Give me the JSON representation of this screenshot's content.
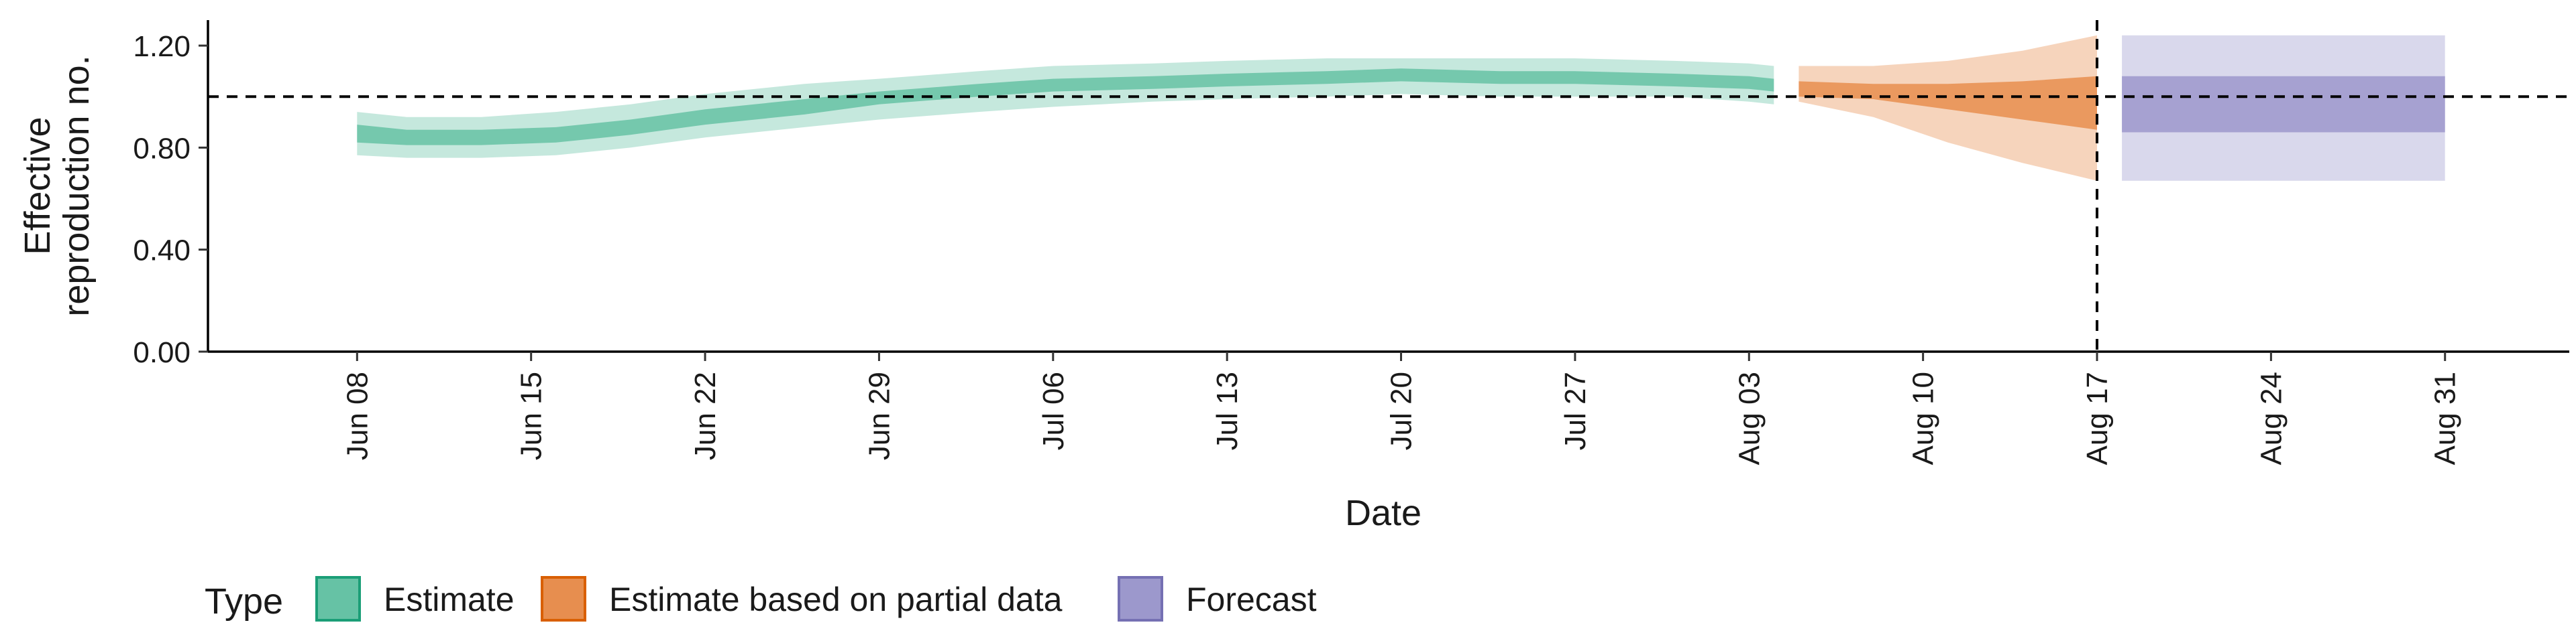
{
  "chart_data": {
    "type": "area",
    "title": "",
    "xlabel": "Date",
    "ylabel_lines": [
      "Effective",
      "reproduction no."
    ],
    "xlim": [
      "2020-06-02",
      "2020-09-05"
    ],
    "ylim": [
      0,
      1.3
    ],
    "y_ticks": [
      0.0,
      0.4,
      0.8,
      1.2
    ],
    "y_tick_labels": [
      "0.00",
      "0.40",
      "0.80",
      "1.20"
    ],
    "x_ticks": [
      "2020-06-08",
      "2020-06-15",
      "2020-06-22",
      "2020-06-29",
      "2020-07-06",
      "2020-07-13",
      "2020-07-20",
      "2020-07-27",
      "2020-08-03",
      "2020-08-10",
      "2020-08-17",
      "2020-08-24",
      "2020-08-31"
    ],
    "x_tick_labels": [
      "Jun 08",
      "Jun 15",
      "Jun 22",
      "Jun 29",
      "Jul 06",
      "Jul 13",
      "Jul 20",
      "Jul 27",
      "Aug 03",
      "Aug 10",
      "Aug 17",
      "Aug 24",
      "Aug 31"
    ],
    "reference_line_y": 1.0,
    "vertical_line_date": "2020-08-17",
    "grid": false,
    "legend_position": "bottom-left",
    "legend_title": "Type",
    "colors": {
      "estimate": "#66c2a5",
      "partial": "#e78e4f",
      "forecast": "#9c98cc",
      "estimate_border": "#1b9e77",
      "partial_border": "#d95f02",
      "forecast_border": "#7570b3"
    },
    "series": [
      {
        "name": "Estimate",
        "color": "#66c2a5",
        "x": [
          "2020-06-08",
          "2020-06-10",
          "2020-06-13",
          "2020-06-16",
          "2020-06-19",
          "2020-06-22",
          "2020-06-26",
          "2020-06-29",
          "2020-07-03",
          "2020-07-06",
          "2020-07-10",
          "2020-07-13",
          "2020-07-17",
          "2020-07-20",
          "2020-07-24",
          "2020-07-27",
          "2020-07-31",
          "2020-08-03",
          "2020-08-04"
        ],
        "lower90": [
          0.77,
          0.76,
          0.76,
          0.77,
          0.8,
          0.84,
          0.88,
          0.91,
          0.94,
          0.96,
          0.98,
          0.99,
          1.0,
          1.01,
          1.0,
          1.0,
          1.0,
          0.98,
          0.97
        ],
        "lower50": [
          0.82,
          0.81,
          0.81,
          0.82,
          0.85,
          0.89,
          0.93,
          0.97,
          1.0,
          1.02,
          1.03,
          1.04,
          1.05,
          1.06,
          1.05,
          1.05,
          1.04,
          1.03,
          1.02
        ],
        "upper50": [
          0.89,
          0.87,
          0.87,
          0.88,
          0.91,
          0.95,
          0.99,
          1.02,
          1.05,
          1.07,
          1.08,
          1.09,
          1.1,
          1.11,
          1.1,
          1.1,
          1.09,
          1.08,
          1.07
        ],
        "upper90": [
          0.94,
          0.92,
          0.92,
          0.94,
          0.97,
          1.01,
          1.05,
          1.07,
          1.1,
          1.12,
          1.13,
          1.14,
          1.15,
          1.15,
          1.15,
          1.15,
          1.14,
          1.13,
          1.12
        ]
      },
      {
        "name": "Estimate based on partial data",
        "color": "#e78e4f",
        "x": [
          "2020-08-05",
          "2020-08-08",
          "2020-08-11",
          "2020-08-14",
          "2020-08-17"
        ],
        "lower90": [
          0.98,
          0.92,
          0.82,
          0.74,
          0.67
        ],
        "lower50": [
          1.0,
          0.99,
          0.95,
          0.91,
          0.87
        ],
        "upper50": [
          1.06,
          1.05,
          1.05,
          1.06,
          1.08
        ],
        "upper90": [
          1.12,
          1.12,
          1.14,
          1.18,
          1.24
        ]
      },
      {
        "name": "Forecast",
        "color": "#9c98cc",
        "x": [
          "2020-08-18",
          "2020-08-31"
        ],
        "lower90": [
          0.67,
          0.67
        ],
        "lower50": [
          0.86,
          0.86
        ],
        "upper50": [
          1.08,
          1.08
        ],
        "upper90": [
          1.24,
          1.24
        ]
      }
    ]
  }
}
